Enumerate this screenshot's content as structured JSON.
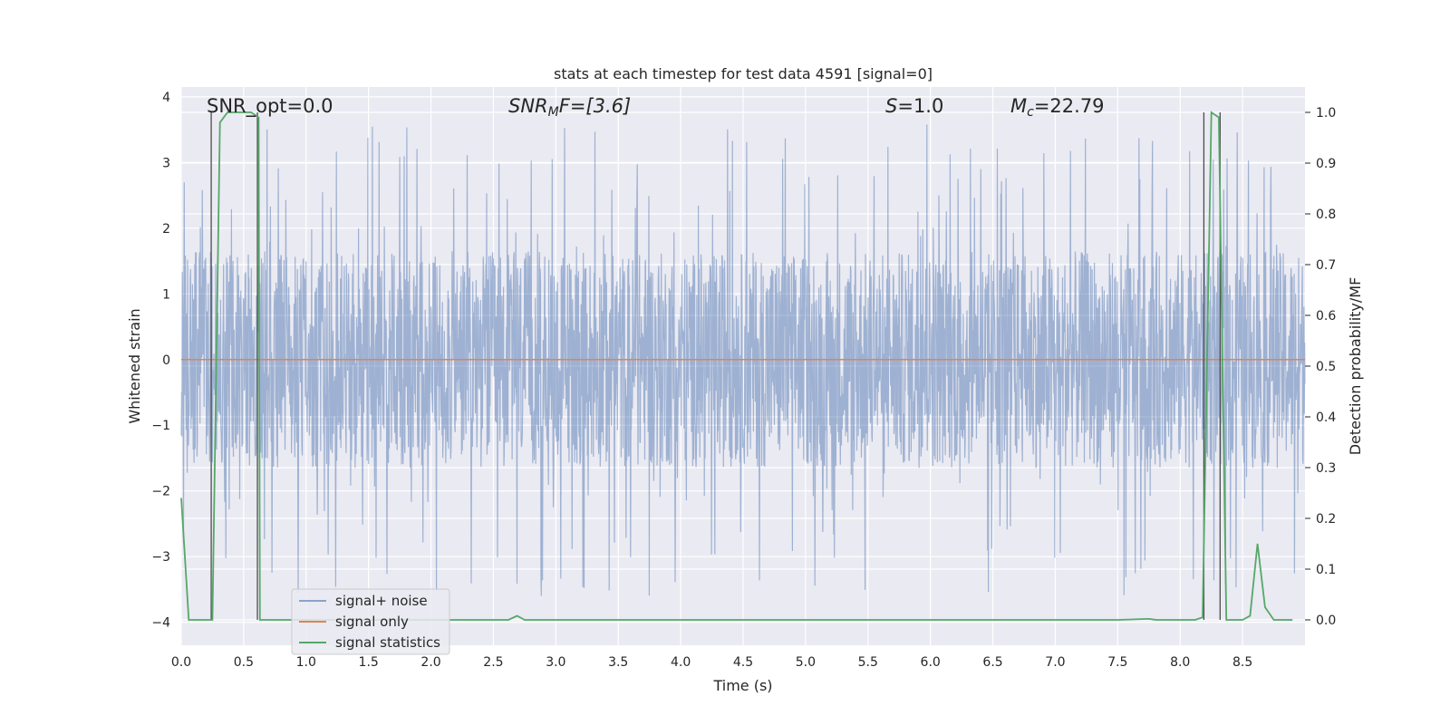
{
  "chart_data": {
    "type": "line",
    "title": "stats at each timestep for test data 4591 [signal=0]",
    "xlabel": "Time (s)",
    "ylabel": "Whitened strain",
    "ylabel_right": "Detection probability/MF",
    "xlim": [
      0.0,
      9.0
    ],
    "ylim": [
      -4.35,
      4.15
    ],
    "ylim_right": [
      -0.05,
      1.05
    ],
    "x_ticks": [
      "0.0",
      "0.5",
      "1.0",
      "1.5",
      "2.0",
      "2.5",
      "3.0",
      "3.5",
      "4.0",
      "4.5",
      "5.0",
      "5.5",
      "6.0",
      "6.5",
      "7.0",
      "7.5",
      "8.0",
      "8.5"
    ],
    "x_tick_values": [
      0.0,
      0.5,
      1.0,
      1.5,
      2.0,
      2.5,
      3.0,
      3.5,
      4.0,
      4.5,
      5.0,
      5.5,
      6.0,
      6.5,
      7.0,
      7.5,
      8.0,
      8.5
    ],
    "y_ticks": [
      "4",
      "3",
      "2",
      "1",
      "0",
      "−1",
      "−2",
      "−3",
      "−4"
    ],
    "y_tick_values": [
      4,
      3,
      2,
      1,
      0,
      -1,
      -2,
      -3,
      -4
    ],
    "y_right_ticks": [
      "1.0",
      "0.9",
      "0.8",
      "0.7",
      "0.6",
      "0.5",
      "0.4",
      "0.3",
      "0.2",
      "0.1",
      "0.0"
    ],
    "y_right_tick_values": [
      1.0,
      0.9,
      0.8,
      0.7,
      0.6,
      0.5,
      0.4,
      0.3,
      0.2,
      0.1,
      0.0
    ],
    "grid": true,
    "legend_position": "lower-left",
    "annotations": {
      "snr_opt": "SNR_opt=0.0",
      "snr_mf_main": "SNR",
      "snr_mf_sub": "M",
      "snr_mf_rest": "F=[3.6]",
      "s_main": "S",
      "s_rest": "=1.0",
      "mc_main": "M",
      "mc_sub": "c",
      "mc_rest": "=22.79"
    },
    "series": [
      {
        "name": "signal+ noise",
        "color": "#4c72b0",
        "description": "whitened noise trace, amplitude mostly within ±1.7 with spikes to about ±3.8"
      },
      {
        "name": "signal only",
        "color": "#dd8452",
        "values_constant": 0.0
      },
      {
        "name": "signal statistics",
        "color": "#55a868",
        "axis": "right",
        "x": [
          0.0,
          0.06,
          0.12,
          0.18,
          0.24,
          0.25,
          0.31,
          0.37,
          0.43,
          0.5,
          0.56,
          0.62,
          0.63,
          0.69,
          0.75,
          1.0,
          1.5,
          2.0,
          2.25,
          2.5,
          2.62,
          2.69,
          2.75,
          2.81,
          3.0,
          4.0,
          5.0,
          6.0,
          7.0,
          7.5,
          7.75,
          7.81,
          8.0,
          8.12,
          8.18,
          8.25,
          8.31,
          8.37,
          8.43,
          8.5,
          8.56,
          8.62,
          8.68,
          8.75,
          8.81,
          8.87,
          8.9
        ],
        "values": [
          0.24,
          0.0,
          0.0,
          0.0,
          0.0,
          0.0,
          0.98,
          1.0,
          1.0,
          1.0,
          1.0,
          0.99,
          0.0,
          0.0,
          0.0,
          0.0,
          0.0,
          0.0,
          0.0,
          0.0,
          0.0,
          0.008,
          0.0,
          0.0,
          0.0,
          0.0,
          0.0,
          0.0,
          0.0,
          0.0,
          0.002,
          0.0,
          0.0,
          0.0,
          0.005,
          1.0,
          0.99,
          0.0,
          0.0,
          0.0,
          0.008,
          0.15,
          0.025,
          0.0,
          0.0,
          0.0,
          0.0
        ]
      }
    ],
    "vertical_markers": [
      0.24,
      0.61,
      8.19,
      8.32
    ]
  }
}
